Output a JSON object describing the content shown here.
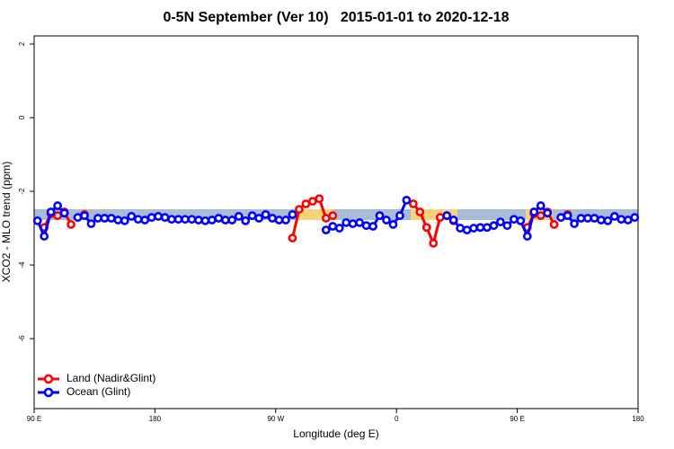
{
  "chart_data": {
    "type": "line",
    "title": "0-5N September (Ver 10)   2015-01-01 to 2020-12-18",
    "x_label": "Longitude (deg E)",
    "y_label": "XCO2 - MLO trend (ppm)",
    "xlim": [
      90,
      540
    ],
    "ylim": [
      -7.9,
      2.22
    ],
    "xticks": [
      {
        "value": 90,
        "label": "90 E"
      },
      180,
      {
        "value": 270,
        "label": "90 W"
      },
      {
        "value": 360,
        "label": "0"
      },
      {
        "value": 450,
        "label": "90 E"
      },
      {
        "value": 540,
        "label": "180"
      }
    ],
    "yticks": [
      2,
      0,
      -2,
      -4,
      -6
    ],
    "legend": "bottomleft",
    "x": [
      92.5,
      97.5,
      102.5,
      107.5,
      112.5,
      117.5,
      122.5,
      127.5,
      132.5,
      137.5,
      142.5,
      147.5,
      152.5,
      157.5,
      162.5,
      167.5,
      172.5,
      177.5,
      182.5,
      187.5,
      192.5,
      197.5,
      202.5,
      207.5,
      212.5,
      217.5,
      222.5,
      227.5,
      232.5,
      237.5,
      242.5,
      247.5,
      252.5,
      257.5,
      262.5,
      267.5,
      272.5,
      277.5,
      282.5,
      287.5,
      292.5,
      297.5,
      302.5,
      307.5,
      312.5,
      317.5,
      322.5,
      327.5,
      332.5,
      337.5,
      342.5,
      347.5,
      352.5,
      357.5,
      362.5,
      367.5,
      372.5,
      377.5,
      382.5,
      387.5,
      392.5,
      397.5,
      402.5,
      407.5,
      412.5,
      417.5,
      422.5,
      427.5,
      432.5,
      437.5,
      442.5,
      447.5,
      452.5,
      457.5,
      462.5,
      467.5,
      472.5,
      477.5,
      482.5,
      487.5,
      492.5,
      497.5,
      502.5,
      507.5,
      512.5,
      517.5,
      522.5,
      527.5,
      532.5,
      537.5
    ],
    "series": [
      {
        "name": "Land (Nadir&Glint)",
        "color": "#ff0000",
        "values": [
          null,
          -2.98,
          -2.61,
          -2.66,
          -2.56,
          -2.9,
          null,
          -2.63,
          null,
          null,
          null,
          null,
          null,
          null,
          null,
          null,
          null,
          null,
          null,
          null,
          null,
          null,
          null,
          null,
          null,
          null,
          null,
          null,
          null,
          null,
          null,
          null,
          null,
          null,
          null,
          null,
          null,
          null,
          -3.27,
          -2.49,
          -2.34,
          -2.27,
          -2.2,
          -2.73,
          -2.66,
          null,
          null,
          null,
          null,
          null,
          null,
          null,
          null,
          null,
          null,
          null,
          -2.34,
          -2.56,
          -2.98,
          -3.41,
          -2.71,
          -2.66,
          -2.8,
          null,
          null,
          null,
          null,
          null,
          null,
          null,
          null,
          null,
          null,
          -2.98,
          -2.61,
          -2.66,
          -2.56,
          -2.9,
          null,
          -2.63,
          null,
          null,
          null,
          null,
          null,
          null,
          null,
          null,
          null,
          null
        ]
      },
      {
        "name": "Ocean (Glint)",
        "color": "#0000ff",
        "values": [
          -2.8,
          -3.22,
          -2.56,
          -2.39,
          -2.59,
          null,
          -2.71,
          -2.66,
          -2.88,
          -2.73,
          -2.73,
          -2.73,
          -2.78,
          -2.8,
          -2.68,
          -2.76,
          -2.78,
          -2.71,
          -2.68,
          -2.71,
          -2.76,
          -2.76,
          -2.76,
          -2.76,
          -2.78,
          -2.8,
          -2.78,
          -2.73,
          -2.78,
          -2.78,
          -2.68,
          -2.8,
          -2.66,
          -2.73,
          -2.63,
          -2.73,
          -2.78,
          -2.78,
          -2.63,
          null,
          null,
          null,
          null,
          -3.05,
          -2.95,
          -3.0,
          -2.85,
          -2.88,
          -2.85,
          -2.93,
          -2.95,
          -2.66,
          -2.78,
          -2.9,
          -2.66,
          -2.24,
          null,
          null,
          null,
          null,
          null,
          -2.66,
          -2.78,
          -3.0,
          -3.05,
          -3.0,
          -2.98,
          -2.98,
          -2.93,
          -2.83,
          -2.93,
          -2.76,
          -2.8,
          -3.22,
          -2.56,
          -2.39,
          -2.59,
          null,
          -2.71,
          -2.66,
          -2.88,
          -2.73,
          -2.73,
          -2.73,
          -2.78,
          -2.8,
          -2.68,
          -2.76,
          -2.78,
          -2.71
        ]
      }
    ]
  }
}
